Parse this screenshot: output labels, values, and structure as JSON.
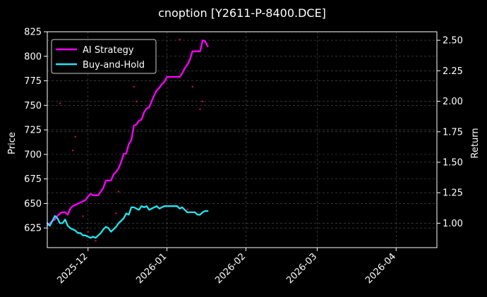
{
  "chart_data": {
    "type": "line",
    "title": "cnoption [Y2611-P-8400.DCE]",
    "xlabel": "",
    "ylabel_left": "Price",
    "ylabel_right": "Return",
    "x_range": [
      "2025-11-15",
      "2026-04-17"
    ],
    "x_ticks": [
      "2025-12",
      "2026-01",
      "2026-02",
      "2026-03",
      "2026-04"
    ],
    "x_tick_dates": [
      "2025-12-01",
      "2026-01-01",
      "2026-02-01",
      "2026-03-01",
      "2026-04-01"
    ],
    "ylim_left": [
      605,
      825
    ],
    "yticks_left": [
      625,
      650,
      675,
      700,
      725,
      750,
      775,
      800,
      825
    ],
    "ylim_right": [
      0.8,
      2.57
    ],
    "yticks_right": [
      "1.00",
      "1.25",
      "1.50",
      "1.75",
      "2.00",
      "2.25",
      "2.50"
    ],
    "grid": true,
    "legend_position": "top-left",
    "series": [
      {
        "name": "AI Strategy",
        "axis": "right",
        "color": "#ff00ff",
        "points": [
          [
            "2025-11-15",
            0.98
          ],
          [
            "2025-11-16",
            1.0
          ],
          [
            "2025-11-17",
            1.02
          ],
          [
            "2025-11-18",
            1.03
          ],
          [
            "2025-11-19",
            1.06
          ],
          [
            "2025-11-20",
            1.08
          ],
          [
            "2025-11-21",
            1.09
          ],
          [
            "2025-11-22",
            1.09
          ],
          [
            "2025-11-23",
            1.07
          ],
          [
            "2025-11-24",
            1.12
          ],
          [
            "2025-11-25",
            1.14
          ],
          [
            "2025-11-26",
            1.15
          ],
          [
            "2025-11-27",
            1.16
          ],
          [
            "2025-11-28",
            1.17
          ],
          [
            "2025-11-29",
            1.18
          ],
          [
            "2025-11-30",
            1.19
          ],
          [
            "2025-12-01",
            1.22
          ],
          [
            "2025-12-02",
            1.24
          ],
          [
            "2025-12-03",
            1.23
          ],
          [
            "2025-12-04",
            1.23
          ],
          [
            "2025-12-05",
            1.23
          ],
          [
            "2025-12-06",
            1.26
          ],
          [
            "2025-12-07",
            1.29
          ],
          [
            "2025-12-08",
            1.35
          ],
          [
            "2025-12-09",
            1.35
          ],
          [
            "2025-12-10",
            1.35
          ],
          [
            "2025-12-11",
            1.4
          ],
          [
            "2025-12-12",
            1.42
          ],
          [
            "2025-12-13",
            1.45
          ],
          [
            "2025-12-14",
            1.5
          ],
          [
            "2025-12-15",
            1.57
          ],
          [
            "2025-12-16",
            1.57
          ],
          [
            "2025-12-17",
            1.65
          ],
          [
            "2025-12-18",
            1.68
          ],
          [
            "2025-12-19",
            1.8
          ],
          [
            "2025-12-20",
            1.81
          ],
          [
            "2025-12-21",
            1.84
          ],
          [
            "2025-12-22",
            1.85
          ],
          [
            "2025-12-23",
            1.91
          ],
          [
            "2025-12-24",
            1.94
          ],
          [
            "2025-12-25",
            1.95
          ],
          [
            "2025-12-26",
            2.0
          ],
          [
            "2025-12-27",
            2.05
          ],
          [
            "2025-12-28",
            2.09
          ],
          [
            "2025-12-29",
            2.11
          ],
          [
            "2025-12-30",
            2.14
          ],
          [
            "2025-12-31",
            2.16
          ],
          [
            "2026-01-01",
            2.2
          ],
          [
            "2026-01-02",
            2.2
          ],
          [
            "2026-01-04",
            2.2
          ],
          [
            "2026-01-06",
            2.2
          ],
          [
            "2026-01-07",
            2.23
          ],
          [
            "2026-01-08",
            2.27
          ],
          [
            "2026-01-09",
            2.3
          ],
          [
            "2026-01-10",
            2.34
          ],
          [
            "2026-01-11",
            2.41
          ],
          [
            "2026-01-12",
            2.41
          ],
          [
            "2026-01-13",
            2.41
          ],
          [
            "2026-01-14",
            2.41
          ],
          [
            "2026-01-15",
            2.5
          ],
          [
            "2026-01-16",
            2.49
          ],
          [
            "2026-01-17",
            2.45
          ]
        ]
      },
      {
        "name": "Buy-and-Hold",
        "axis": "right",
        "color": "#22e6f0",
        "points": [
          [
            "2025-11-15",
            1.0
          ],
          [
            "2025-11-16",
            0.98
          ],
          [
            "2025-11-17",
            1.02
          ],
          [
            "2025-11-18",
            1.06
          ],
          [
            "2025-11-19",
            1.04
          ],
          [
            "2025-11-20",
            1.0
          ],
          [
            "2025-11-21",
            1.0
          ],
          [
            "2025-11-22",
            1.03
          ],
          [
            "2025-11-23",
            0.98
          ],
          [
            "2025-11-24",
            0.96
          ],
          [
            "2025-11-25",
            0.95
          ],
          [
            "2025-11-26",
            0.94
          ],
          [
            "2025-11-27",
            0.92
          ],
          [
            "2025-11-28",
            0.92
          ],
          [
            "2025-11-29",
            0.9
          ],
          [
            "2025-11-30",
            0.9
          ],
          [
            "2025-12-01",
            0.89
          ],
          [
            "2025-12-02",
            0.88
          ],
          [
            "2025-12-03",
            0.89
          ],
          [
            "2025-12-04",
            0.88
          ],
          [
            "2025-12-05",
            0.9
          ],
          [
            "2025-12-06",
            0.92
          ],
          [
            "2025-12-07",
            0.95
          ],
          [
            "2025-12-08",
            0.97
          ],
          [
            "2025-12-09",
            0.96
          ],
          [
            "2025-12-10",
            0.93
          ],
          [
            "2025-12-11",
            0.95
          ],
          [
            "2025-12-12",
            0.97
          ],
          [
            "2025-12-13",
            1.0
          ],
          [
            "2025-12-14",
            1.02
          ],
          [
            "2025-12-15",
            1.04
          ],
          [
            "2025-12-16",
            1.08
          ],
          [
            "2025-12-17",
            1.07
          ],
          [
            "2025-12-18",
            1.13
          ],
          [
            "2025-12-19",
            1.13
          ],
          [
            "2025-12-20",
            1.12
          ],
          [
            "2025-12-21",
            1.11
          ],
          [
            "2025-12-22",
            1.14
          ],
          [
            "2025-12-23",
            1.13
          ],
          [
            "2025-12-24",
            1.14
          ],
          [
            "2025-12-25",
            1.11
          ],
          [
            "2025-12-26",
            1.12
          ],
          [
            "2025-12-27",
            1.13
          ],
          [
            "2025-12-28",
            1.14
          ],
          [
            "2025-12-29",
            1.12
          ],
          [
            "2025-12-30",
            1.13
          ],
          [
            "2025-12-31",
            1.14
          ],
          [
            "2026-01-01",
            1.14
          ],
          [
            "2026-01-02",
            1.14
          ],
          [
            "2026-01-03",
            1.14
          ],
          [
            "2026-01-04",
            1.14
          ],
          [
            "2026-01-05",
            1.14
          ],
          [
            "2026-01-06",
            1.12
          ],
          [
            "2026-01-07",
            1.13
          ],
          [
            "2026-01-08",
            1.11
          ],
          [
            "2026-01-09",
            1.09
          ],
          [
            "2026-01-10",
            1.09
          ],
          [
            "2026-01-11",
            1.09
          ],
          [
            "2026-01-12",
            1.09
          ],
          [
            "2026-01-13",
            1.07
          ],
          [
            "2026-01-14",
            1.07
          ],
          [
            "2026-01-15",
            1.09
          ],
          [
            "2026-01-16",
            1.1
          ],
          [
            "2026-01-17",
            1.1
          ]
        ]
      }
    ],
    "scatter_points": {
      "name": "",
      "axis": "left",
      "color": "#ff1040",
      "points": [
        [
          "2025-11-20",
          752
        ],
        [
          "2025-11-25",
          704
        ],
        [
          "2025-11-26",
          718
        ],
        [
          "2025-11-29",
          637
        ],
        [
          "2025-12-01",
          621
        ],
        [
          "2025-12-04",
          612
        ],
        [
          "2025-12-12",
          640
        ],
        [
          "2025-12-13",
          662
        ],
        [
          "2025-12-19",
          769
        ],
        [
          "2025-12-20",
          754
        ],
        [
          "2026-01-06",
          817
        ],
        [
          "2026-01-09",
          644
        ],
        [
          "2026-01-11",
          769
        ],
        [
          "2026-01-14",
          746
        ],
        [
          "2026-01-15",
          754
        ]
      ]
    }
  }
}
